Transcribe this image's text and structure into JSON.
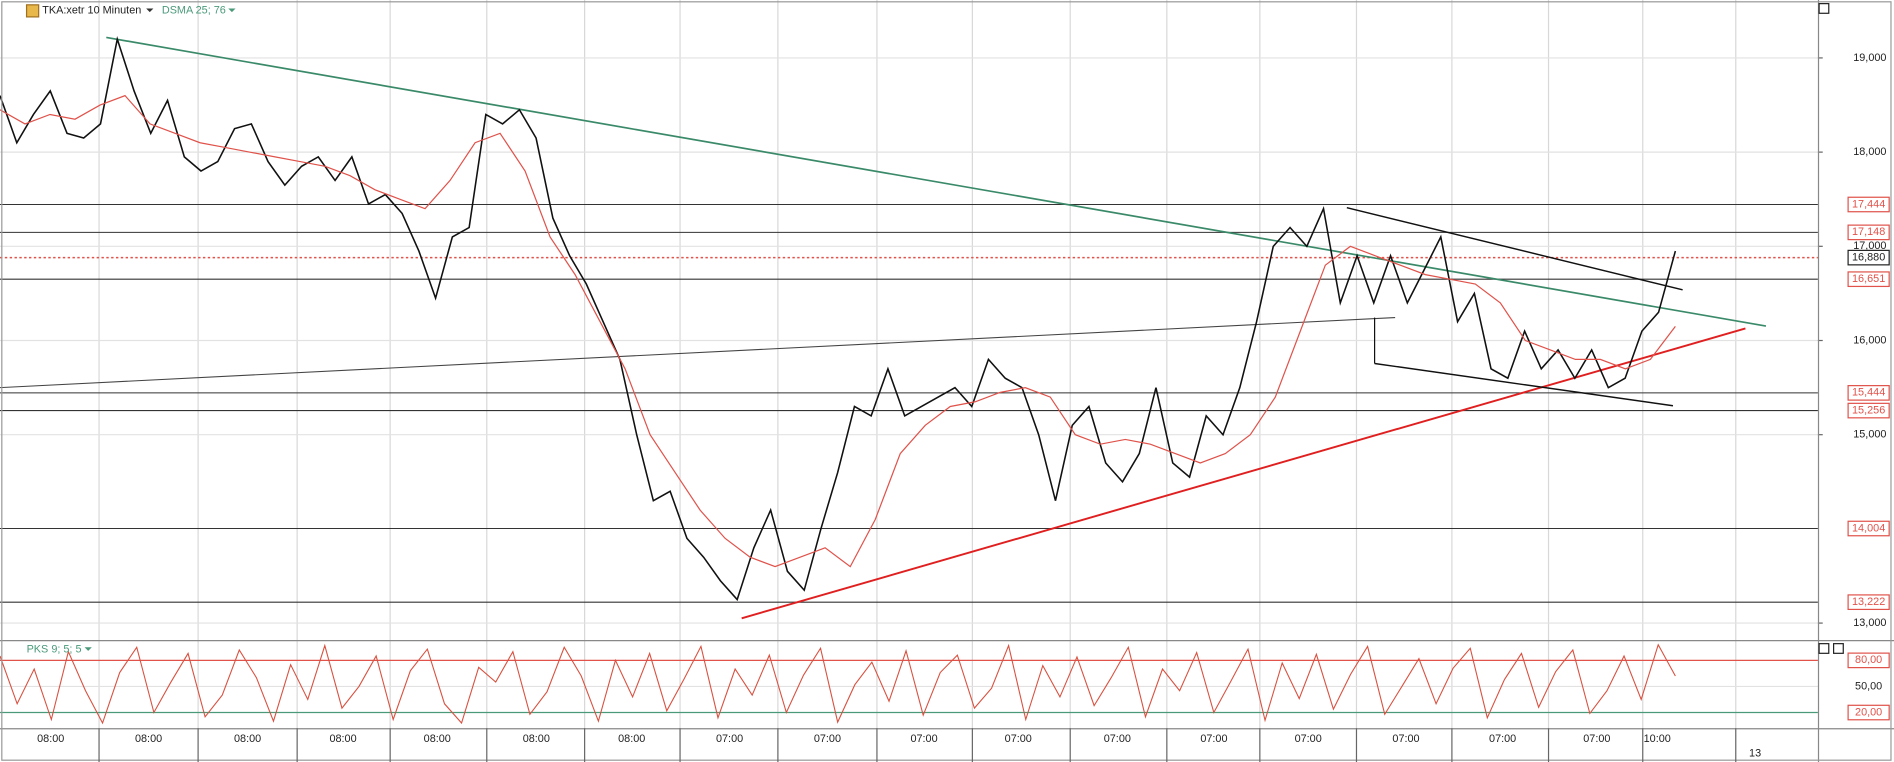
{
  "chart_data": {
    "type": "line",
    "ylim": [
      12820,
      19615
    ],
    "yticks": [
      {
        "value": 13000,
        "label": "13,000"
      },
      {
        "value": 15000,
        "label": "15,000"
      },
      {
        "value": 16000,
        "label": "16,000"
      },
      {
        "value": 17000,
        "label": "17,000"
      },
      {
        "value": 18000,
        "label": "18,000"
      },
      {
        "value": 19000,
        "label": "19,000"
      }
    ],
    "grid": true,
    "series": [
      {
        "name": "TKA:xetr 10 Minuten",
        "color": "#111111",
        "values": [
          18600,
          18100,
          18400,
          18650,
          18200,
          18150,
          18300,
          19200,
          18650,
          18200,
          18550,
          17950,
          17800,
          17900,
          18250,
          18300,
          17900,
          17650,
          17850,
          17950,
          17700,
          17950,
          17450,
          17550,
          17350,
          16950,
          16450,
          17100,
          17200,
          18400,
          18300,
          18450,
          18150,
          17300,
          16900,
          16600,
          16200,
          15800,
          15000,
          14300,
          14400,
          13900,
          13700,
          13450,
          13250,
          13800,
          14200,
          13550,
          13350,
          14000,
          14600,
          15300,
          15200,
          15700,
          15200,
          15300,
          15400,
          15500,
          15300,
          15800,
          15600,
          15500,
          15000,
          14300,
          15100,
          15300,
          14700,
          14500,
          14800,
          15500,
          14700,
          14550,
          15200,
          15000,
          15500,
          16200,
          17000,
          17200,
          17000,
          17400,
          16400,
          16900,
          16400,
          16900,
          16400,
          16750,
          17100,
          16200,
          16500,
          15700,
          15600,
          16100,
          15700,
          15900,
          15600,
          15900,
          15500,
          15600,
          16100,
          16300,
          16950
        ]
      },
      {
        "name": "DSMA 25; 76",
        "color": "#e0524a",
        "values": [
          18450,
          18300,
          18400,
          18350,
          18500,
          18600,
          18300,
          18200,
          18100,
          18050,
          18000,
          17950,
          17900,
          17850,
          17750,
          17600,
          17500,
          17400,
          17700,
          18100,
          18200,
          17800,
          17100,
          16700,
          16200,
          15700,
          15000,
          14600,
          14200,
          13900,
          13700,
          13600,
          13700,
          13800,
          13600,
          14100,
          14800,
          15100,
          15300,
          15350,
          15450,
          15500,
          15400,
          15000,
          14900,
          14950,
          14900,
          14800,
          14700,
          14800,
          15000,
          15400,
          16100,
          16800,
          17000,
          16900,
          16800,
          16700,
          16650,
          16600,
          16400,
          16000,
          15900,
          15800,
          15800,
          15700,
          15800,
          16150
        ]
      }
    ],
    "levels": {
      "values": [
        17444,
        17148,
        16880,
        16651,
        15444,
        15256,
        14004,
        13222
      ],
      "value_labels": [
        "17,444",
        "17,148",
        "16,880",
        "16,651",
        "15,444",
        "15,256",
        "14,004",
        "13,222"
      ],
      "dotted": 16880,
      "color": "#e0524a"
    },
    "oscillator": {
      "name": "PKS 9; 5; 5",
      "color": "#d9503f",
      "ylim": [
        2,
        102
      ],
      "yticks": [
        {
          "value": 20,
          "label": "20,00"
        },
        {
          "value": 50,
          "label": "50,00"
        },
        {
          "value": 80,
          "label": "80,00"
        }
      ],
      "values": [
        85,
        30,
        70,
        12,
        90,
        45,
        8,
        66,
        95,
        20,
        55,
        88,
        15,
        40,
        92,
        60,
        10,
        75,
        35,
        97,
        25,
        50,
        85,
        12,
        68,
        93,
        30,
        8,
        72,
        55,
        90,
        18,
        44,
        95,
        62,
        10,
        80,
        38,
        88,
        22,
        58,
        96,
        14,
        70,
        40,
        86,
        20,
        63,
        94,
        9,
        52,
        78,
        33,
        91,
        17,
        66,
        86,
        25,
        48,
        97,
        12,
        74,
        38,
        84,
        28,
        60,
        95,
        15,
        70,
        45,
        89,
        20,
        56,
        93,
        11,
        77,
        36,
        87,
        24,
        64,
        96,
        18,
        50,
        82,
        30,
        71,
        94,
        14,
        58,
        88,
        26,
        67,
        92,
        19,
        45,
        85,
        35,
        98,
        62
      ]
    },
    "time_labels": [
      "08:00",
      "08:00",
      "08:00",
      "08:00",
      "08:00",
      "08:00",
      "08:00",
      "07:00",
      "07:00",
      "07:00",
      "07:00",
      "07:00",
      "07:00",
      "07:00",
      "07:00",
      "07:00",
      "07:00",
      "10:00"
    ],
    "date_label": "13"
  }
}
